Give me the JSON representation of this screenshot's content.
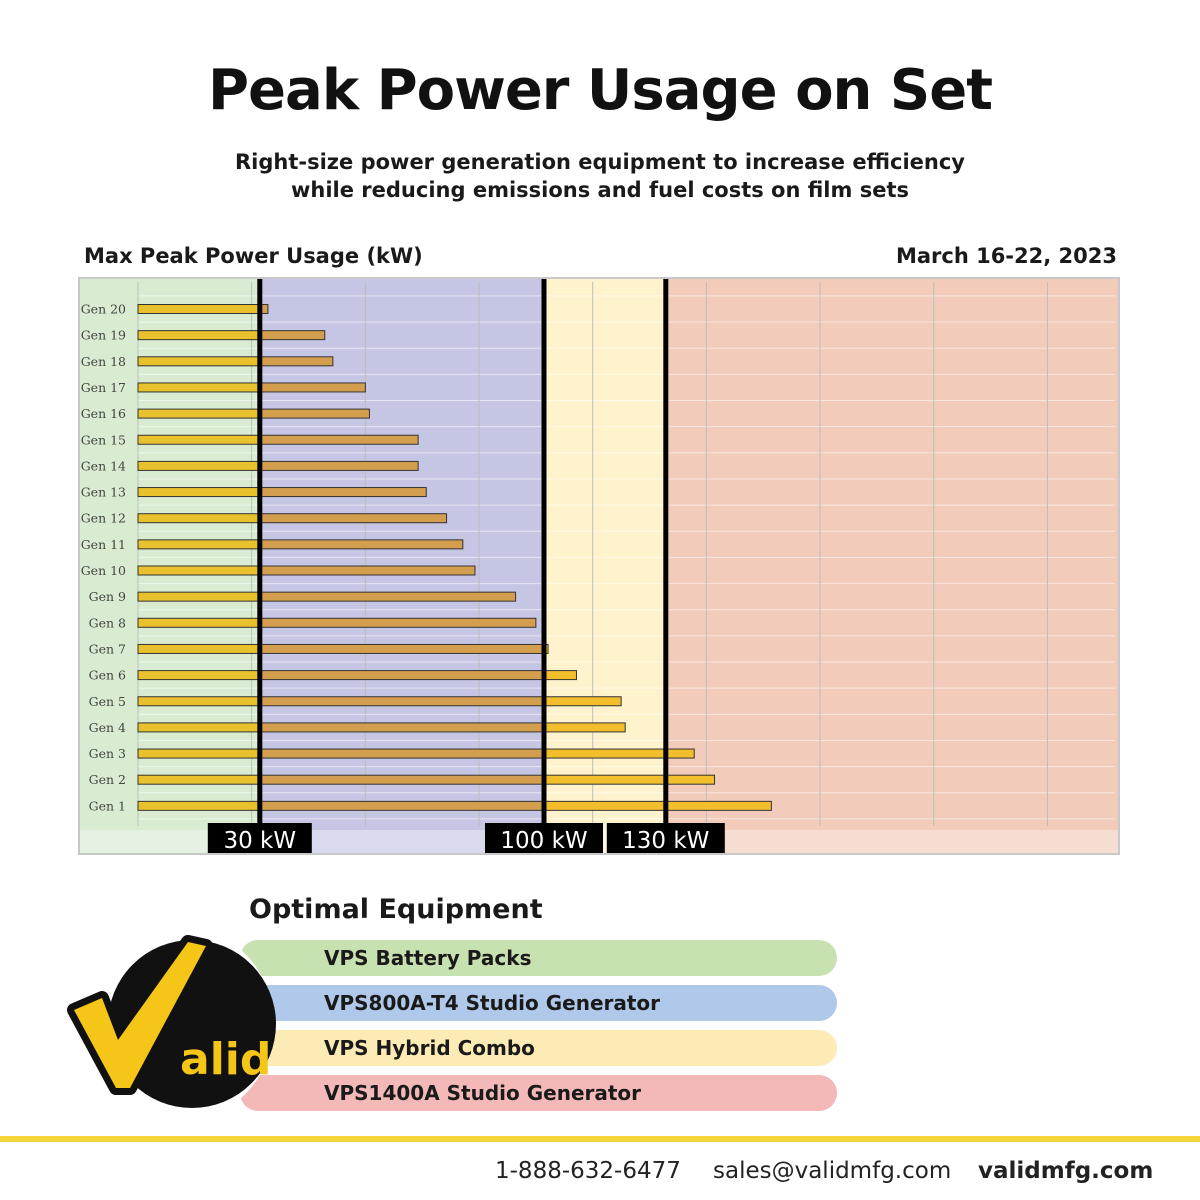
{
  "title": "Peak Power Usage on Set",
  "subtitle": "Right-size power generation equipment to increase efficiency while reducing emissions and fuel costs on film sets",
  "chart_data": {
    "type": "bar",
    "orientation": "horizontal",
    "title": "Max Peak Power Usage (kW)",
    "date_range": "March 16-22, 2023",
    "categories": [
      "Gen 20",
      "Gen 19",
      "Gen 18",
      "Gen 17",
      "Gen 16",
      "Gen 15",
      "Gen 14",
      "Gen 13",
      "Gen 12",
      "Gen 11",
      "Gen 10",
      "Gen 9",
      "Gen 8",
      "Gen 7",
      "Gen 6",
      "Gen 5",
      "Gen 4",
      "Gen 3",
      "Gen 2",
      "Gen 1"
    ],
    "values": [
      32,
      46,
      48,
      56,
      57,
      69,
      69,
      71,
      76,
      80,
      83,
      93,
      98,
      101,
      108,
      119,
      120,
      137,
      142,
      156
    ],
    "xlim": [
      0,
      175
    ],
    "thresholds": [
      {
        "value": 30,
        "label": "30 kW"
      },
      {
        "value": 100,
        "label": "100 kW"
      },
      {
        "value": 130,
        "label": "130 kW"
      }
    ],
    "zone_colors": [
      "#d9ecd2",
      "#c5c6e4",
      "#fff3cd",
      "#f2cbbb"
    ],
    "bar_colors": {
      "battery_zone": "#e8c12c",
      "generator_zone": "#d49e4f",
      "hybrid_zone": "#f2be2c"
    },
    "grid": true
  },
  "equipment": {
    "title": "Optimal Equipment",
    "items": [
      {
        "label": "VPS Battery Packs",
        "color": "#c8e1b0"
      },
      {
        "label": "VPS800A-T4 Studio Generator",
        "color": "#b0c8e9"
      },
      {
        "label": "VPS Hybrid Combo",
        "color": "#fcebb5"
      },
      {
        "label": "VPS1400A Studio Generator",
        "color": "#f3b8b8"
      }
    ]
  },
  "logo": {
    "text": "alid",
    "check_color": "#f5c518"
  },
  "footer": {
    "phone": "1-888-632-6477",
    "email": "sales@validmfg.com",
    "website": "validmfg.com"
  }
}
